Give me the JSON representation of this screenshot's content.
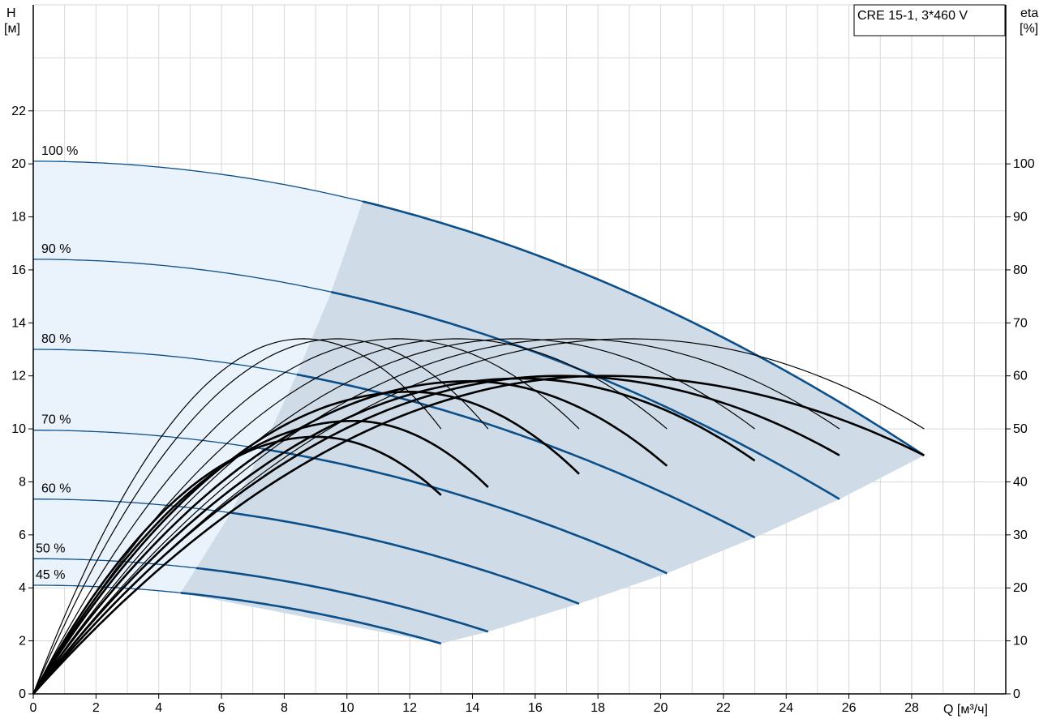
{
  "chart_data": {
    "type": "line",
    "title": "CRE 15-1, 3*460 V",
    "x_axis": {
      "label": "Q [м³/ч]",
      "range": [
        0,
        31
      ],
      "ticks": [
        0,
        2,
        4,
        6,
        8,
        10,
        12,
        14,
        16,
        18,
        20,
        22,
        24,
        26,
        28
      ]
    },
    "y_axis_left": {
      "label_line1": "H",
      "label_line2": "[м]",
      "range": [
        0,
        26
      ],
      "ticks": [
        0,
        2,
        4,
        6,
        8,
        10,
        12,
        14,
        16,
        18,
        20,
        22
      ]
    },
    "y_axis_right": {
      "label_line1": "eta",
      "label_line2": "[%]",
      "range": [
        0,
        130
      ],
      "ticks": [
        0,
        10,
        20,
        30,
        40,
        50,
        60,
        70,
        80,
        90,
        100
      ]
    },
    "grid": true,
    "colors": {
      "head_curve": "#0b4f8a",
      "region_light": "#eaf3fc",
      "region_dark": "#cfdbe6",
      "efficiency": "#000000"
    },
    "head_curves": [
      {
        "label": "100 %",
        "h0": 20.1,
        "qmax": 28.4,
        "hend": 9.0,
        "q_bold_start": 10.5
      },
      {
        "label": "90 %",
        "h0": 16.4,
        "qmax": 25.7,
        "hend": 7.35,
        "q_bold_start": 9.5
      },
      {
        "label": "80 %",
        "h0": 13.0,
        "qmax": 23.0,
        "hend": 5.9,
        "q_bold_start": 8.4
      },
      {
        "label": "70 %",
        "h0": 9.95,
        "qmax": 20.2,
        "hend": 4.55,
        "q_bold_start": 7.3
      },
      {
        "label": "60 %",
        "h0": 7.35,
        "qmax": 17.4,
        "hend": 3.4,
        "q_bold_start": 6.3
      },
      {
        "label": "50 %",
        "h0": 5.1,
        "qmax": 14.5,
        "hend": 2.35,
        "q_bold_start": 5.2
      },
      {
        "label": "45 %",
        "h0": 4.1,
        "qmax": 13.0,
        "hend": 1.9,
        "q_bold_start": 4.7
      }
    ],
    "efficiency_curves_thin": [
      {
        "qmax": 28.4,
        "eta_max": 67,
        "eta_end": 50,
        "q_peak": 19.0
      },
      {
        "qmax": 25.7,
        "eta_max": 67,
        "eta_end": 50,
        "q_peak": 17.2
      },
      {
        "qmax": 23.0,
        "eta_max": 67,
        "eta_end": 50,
        "q_peak": 15.4
      },
      {
        "qmax": 20.2,
        "eta_max": 67,
        "eta_end": 50,
        "q_peak": 13.5
      },
      {
        "qmax": 17.4,
        "eta_max": 67,
        "eta_end": 50,
        "q_peak": 11.6
      },
      {
        "qmax": 14.5,
        "eta_max": 67,
        "eta_end": 50,
        "q_peak": 9.7
      },
      {
        "qmax": 13.0,
        "eta_max": 67,
        "eta_end": 50,
        "q_peak": 8.6
      }
    ],
    "efficiency_curves_bold": [
      {
        "qmax": 28.4,
        "eta_max": 60,
        "eta_end": 45,
        "q_peak": 18.2
      },
      {
        "qmax": 25.7,
        "eta_max": 60,
        "eta_end": 45,
        "q_peak": 16.8
      },
      {
        "qmax": 23.0,
        "eta_max": 59.5,
        "eta_end": 44,
        "q_peak": 15.5
      },
      {
        "qmax": 20.2,
        "eta_max": 59,
        "eta_end": 43,
        "q_peak": 13.9
      },
      {
        "qmax": 17.4,
        "eta_max": 57,
        "eta_end": 41.5,
        "q_peak": 12.0
      },
      {
        "qmax": 14.5,
        "eta_max": 51.5,
        "eta_end": 39,
        "q_peak": 10.2
      },
      {
        "qmax": 13.0,
        "eta_max": 48.5,
        "eta_end": 37.5,
        "q_peak": 9.0
      }
    ]
  }
}
